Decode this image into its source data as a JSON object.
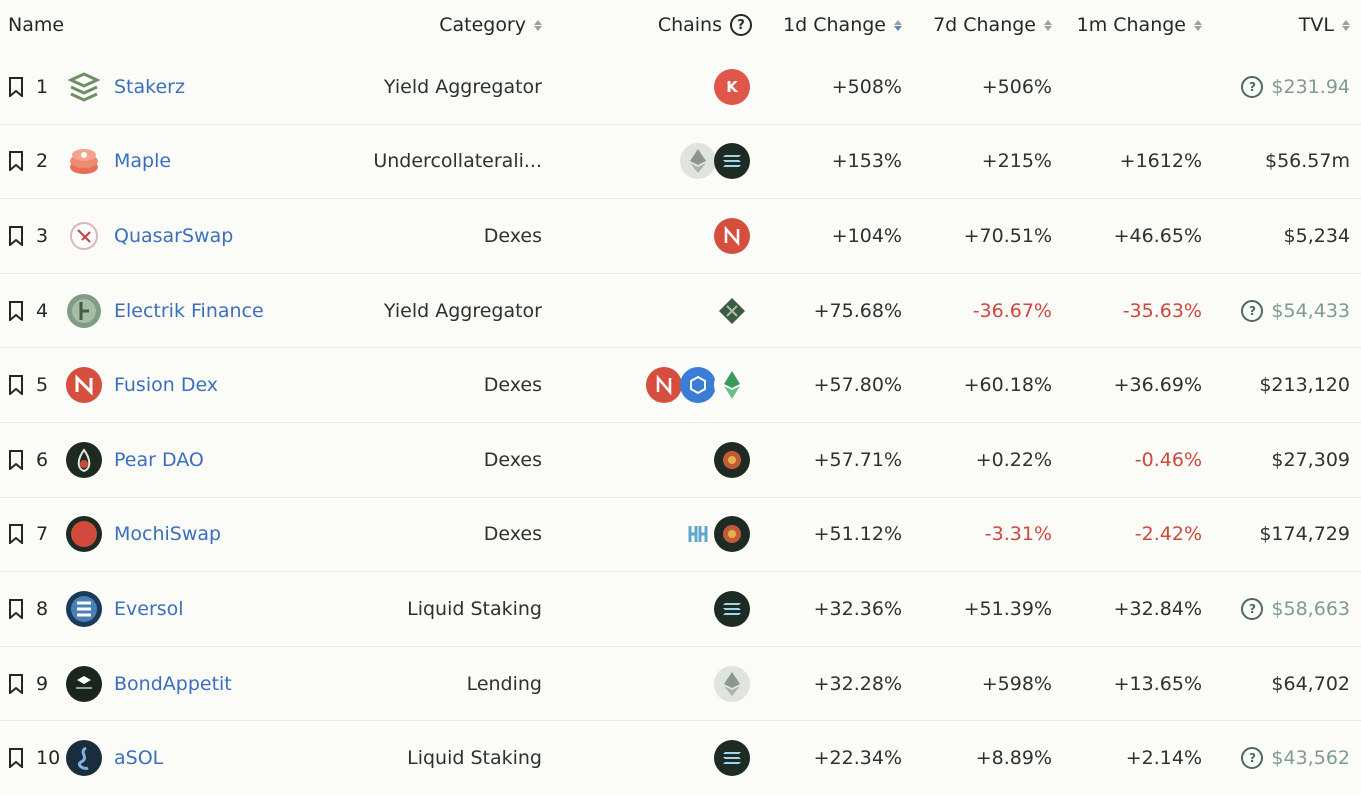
{
  "header": {
    "name": "Name",
    "category": "Category",
    "chains": "Chains",
    "change_1d": "1d Change",
    "change_7d": "7d Change",
    "change_1m": "1m Change",
    "tvl": "TVL"
  },
  "rows": [
    {
      "rank": "1",
      "name": "Stakerz",
      "category": "Yield Aggregator",
      "icon": "stakerz-icon",
      "chains": [
        "kcc"
      ],
      "c1d": "+508%",
      "c7d": "+506%",
      "c1m": "",
      "tvl": "$231.94",
      "tvl_warn": true
    },
    {
      "rank": "2",
      "name": "Maple",
      "category": "Undercollaterali...",
      "icon": "maple-icon",
      "chains": [
        "ethereum",
        "solana"
      ],
      "c1d": "+153%",
      "c7d": "+215%",
      "c1m": "+1612%",
      "tvl": "$56.57m",
      "tvl_warn": false
    },
    {
      "rank": "3",
      "name": "QuasarSwap",
      "category": "Dexes",
      "icon": "quasarswap-icon",
      "chains": [
        "near"
      ],
      "c1d": "+104%",
      "c7d": "+70.51%",
      "c1m": "+46.65%",
      "tvl": "$5,234",
      "tvl_warn": false
    },
    {
      "rank": "4",
      "name": "Electrik Finance",
      "category": "Yield Aggregator",
      "icon": "electrik-icon",
      "chains": [
        "kardia"
      ],
      "c1d": "+75.68%",
      "c7d": "-36.67%",
      "c1m": "-35.63%",
      "tvl": "$54,433",
      "tvl_warn": true
    },
    {
      "rank": "5",
      "name": "Fusion Dex",
      "category": "Dexes",
      "icon": "fusion-dex-icon",
      "chains": [
        "near",
        "fantom",
        "ethereum-classic"
      ],
      "c1d": "+57.80%",
      "c7d": "+60.18%",
      "c1m": "+36.69%",
      "tvl": "$213,120",
      "tvl_warn": false
    },
    {
      "rank": "6",
      "name": "Pear DAO",
      "category": "Dexes",
      "icon": "pear-dao-icon",
      "chains": [
        "bitgert"
      ],
      "c1d": "+57.71%",
      "c7d": "+0.22%",
      "c1m": "-0.46%",
      "tvl": "$27,309",
      "tvl_warn": false
    },
    {
      "rank": "7",
      "name": "MochiSwap",
      "category": "Dexes",
      "icon": "mochiswap-icon",
      "chains": [
        "harmony",
        "bitgert"
      ],
      "c1d": "+51.12%",
      "c7d": "-3.31%",
      "c1m": "-2.42%",
      "tvl": "$174,729",
      "tvl_warn": false
    },
    {
      "rank": "8",
      "name": "Eversol",
      "category": "Liquid Staking",
      "icon": "eversol-icon",
      "chains": [
        "solana"
      ],
      "c1d": "+32.36%",
      "c7d": "+51.39%",
      "c1m": "+32.84%",
      "tvl": "$58,663",
      "tvl_warn": true
    },
    {
      "rank": "9",
      "name": "BondAppetit",
      "category": "Lending",
      "icon": "bondappetit-icon",
      "chains": [
        "ethereum"
      ],
      "c1d": "+32.28%",
      "c7d": "+598%",
      "c1m": "+13.65%",
      "tvl": "$64,702",
      "tvl_warn": false
    },
    {
      "rank": "10",
      "name": "aSOL",
      "category": "Liquid Staking",
      "icon": "asol-icon",
      "chains": [
        "solana"
      ],
      "c1d": "+22.34%",
      "c7d": "+8.89%",
      "c1m": "+2.14%",
      "tvl": "$43,562",
      "tvl_warn": true
    }
  ],
  "colors": {
    "link": "#3b6fbe",
    "negative": "#d0473d",
    "warn_tvl": "#7f9c8b"
  }
}
